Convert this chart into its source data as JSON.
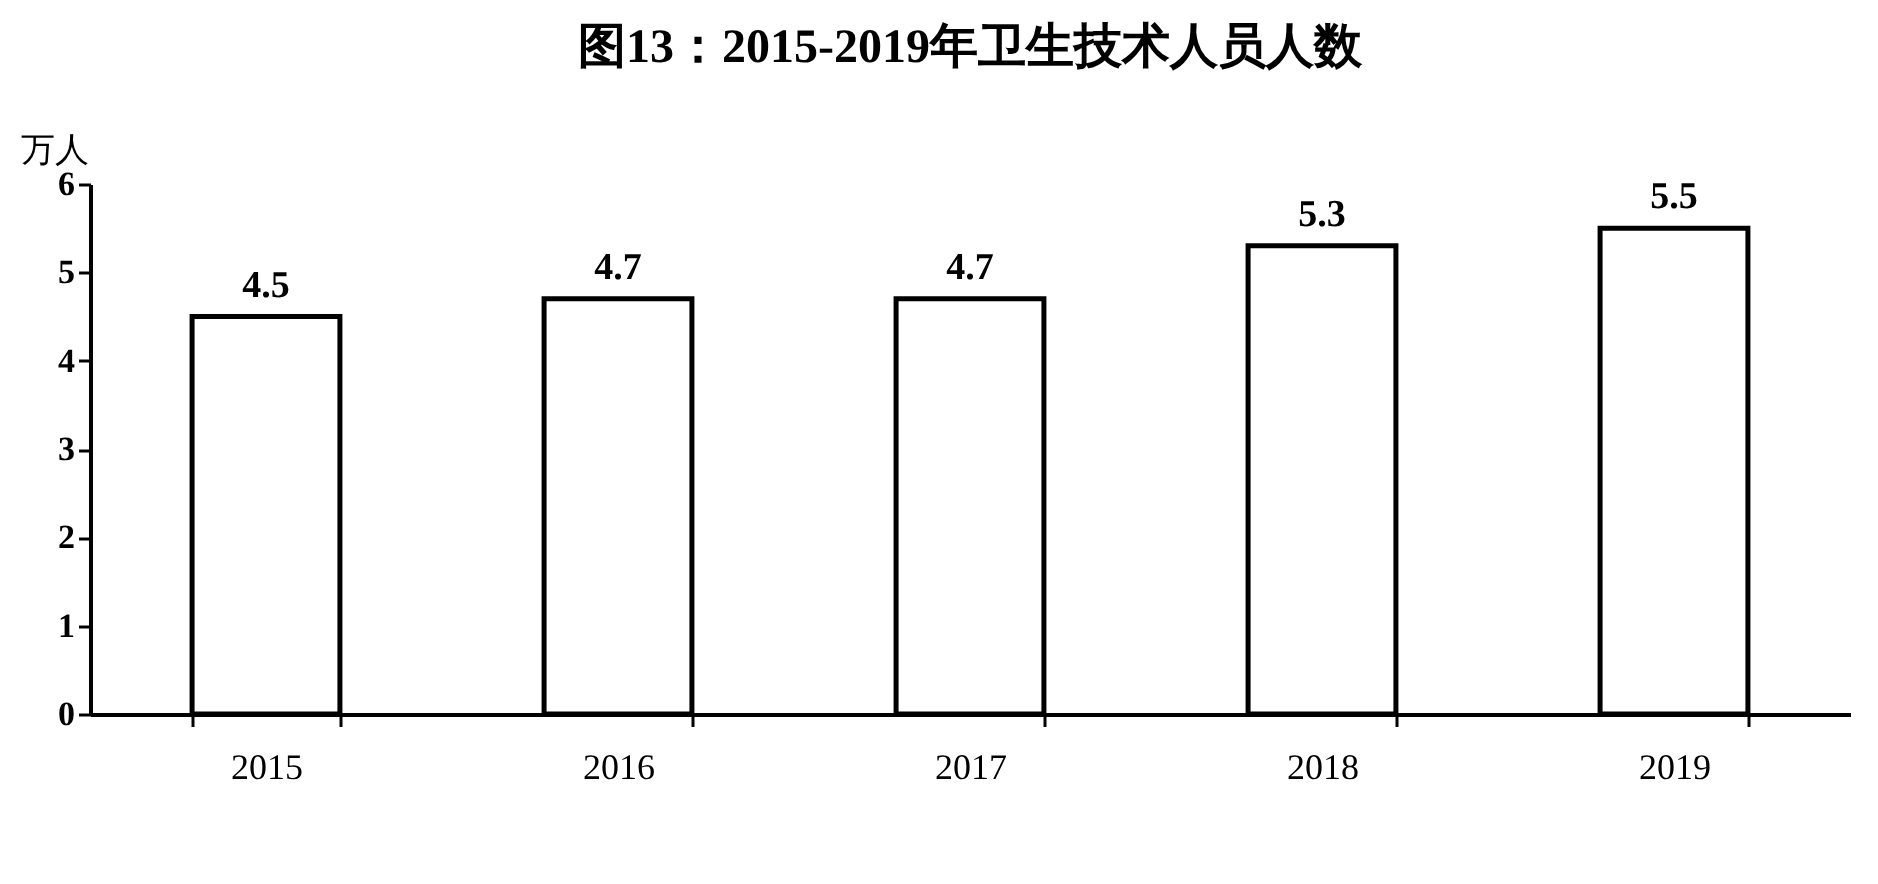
{
  "chart_data": {
    "type": "bar",
    "title": "图13：2015-2019年卫生技术人员人数",
    "ylabel": "万人",
    "categories": [
      "2015",
      "2016",
      "2017",
      "2018",
      "2019"
    ],
    "values": [
      4.5,
      4.7,
      4.7,
      5.3,
      5.5
    ],
    "color": "#ffffff",
    "ylim": [
      0,
      6
    ],
    "yticks": [
      0,
      1,
      2,
      3,
      4,
      5,
      6
    ],
    "grid": false,
    "data_labels": true
  }
}
